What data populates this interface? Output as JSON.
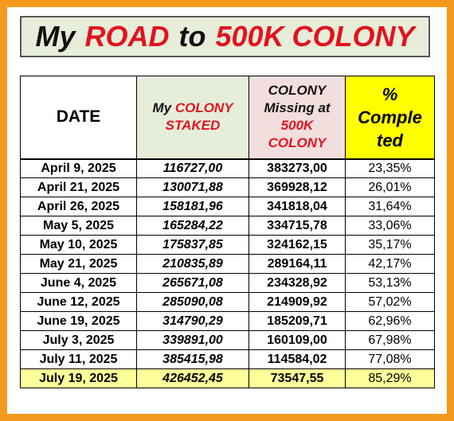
{
  "title": {
    "part1": "My",
    "part2": "ROAD",
    "part3": "to",
    "part4": "500K COLONY"
  },
  "headers": {
    "date": "DATE",
    "staked_line1_a": "My",
    "staked_line1_b": "COLONY",
    "staked_line2": "STAKED",
    "missing_line1": "COLONY",
    "missing_line2": "Missing at",
    "missing_line3": "500K",
    "missing_line4": "COLONY",
    "pct_line1": "%",
    "pct_line2": "Comple",
    "pct_line3": "ted"
  },
  "rows": [
    {
      "date": "April 9, 2025",
      "staked": "116727,00",
      "missing": "383273,00",
      "pct": "23,35%"
    },
    {
      "date": "April 21, 2025",
      "staked": "130071,88",
      "missing": "369928,12",
      "pct": "26,01%"
    },
    {
      "date": "April 26, 2025",
      "staked": "158181,96",
      "missing": "341818,04",
      "pct": "31,64%"
    },
    {
      "date": "May 5, 2025",
      "staked": "165284,22",
      "missing": "334715,78",
      "pct": "33,06%"
    },
    {
      "date": "May 10, 2025",
      "staked": "175837,85",
      "missing": "324162,15",
      "pct": "35,17%"
    },
    {
      "date": "May 21, 2025",
      "staked": "210835,89",
      "missing": "289164,11",
      "pct": "42,17%"
    },
    {
      "date": "June 4, 2025",
      "staked": "265671,08",
      "missing": "234328,92",
      "pct": "53,13%"
    },
    {
      "date": "June 12, 2025",
      "staked": "285090,08",
      "missing": "214909,92",
      "pct": "57,02%"
    },
    {
      "date": "June 19, 2025",
      "staked": "314790,29",
      "missing": "185209,71",
      "pct": "62,96%"
    },
    {
      "date": "July 3, 2025",
      "staked": "339891,00",
      "missing": "160109,00",
      "pct": "67,98%"
    },
    {
      "date": "July 11, 2025",
      "staked": "385415,98",
      "missing": "114584,02",
      "pct": "77,08%"
    },
    {
      "date": "July 19, 2025",
      "staked": "426452,45",
      "missing": "73547,55",
      "pct": "85,29%"
    }
  ],
  "colors": {
    "frame": "#f39a1e",
    "title_bg": "#e6edd9",
    "accent_red": "#e0141e",
    "pct_header_bg": "#ffff00",
    "missing_header_bg": "#f3dede",
    "last_row_bg": "#ffff99"
  }
}
